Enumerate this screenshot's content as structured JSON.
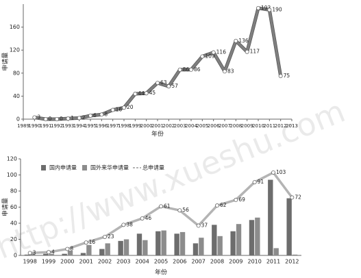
{
  "chart_data": [
    {
      "type": "line",
      "y_label": "申请量",
      "x_label": "年份",
      "x": [
        1990,
        1991,
        1992,
        1993,
        1994,
        1995,
        1996,
        1997,
        1998,
        1999,
        2000,
        2001,
        2002,
        2003,
        2004,
        2005,
        2006,
        2007,
        2008,
        2009,
        2010,
        2011,
        2012
      ],
      "values": [
        3,
        0,
        0,
        1,
        2,
        6,
        8,
        16,
        20,
        44,
        45,
        63,
        57,
        86,
        86,
        109,
        116,
        83,
        136,
        117,
        193,
        190,
        75
      ],
      "color": "#7f7f7f",
      "xlim": [
        1989,
        2013
      ],
      "xticks": [
        1989,
        1990,
        1991,
        1992,
        1993,
        1994,
        1995,
        1996,
        1997,
        1998,
        1999,
        2000,
        2001,
        2002,
        2003,
        2004,
        2005,
        2006,
        2007,
        2008,
        2009,
        2010,
        2011,
        2012,
        2013
      ],
      "ylim": [
        0,
        200
      ],
      "yticks": [
        0,
        40,
        80,
        120,
        160
      ]
    },
    {
      "type": "bar",
      "y_label": "申请量",
      "x_label": "年份",
      "legend": "top-left",
      "categories": [
        "1998",
        "1999",
        "2000",
        "2001",
        "2002",
        "2003",
        "2004",
        "2005",
        "2006",
        "2007",
        "2008",
        "2009",
        "2010",
        "2011",
        "2012"
      ],
      "series": [
        {
          "name": "国内申请量",
          "color": "#6d6d6d",
          "values": [
            1,
            2,
            2,
            3,
            8,
            18,
            27,
            30,
            27,
            15,
            38,
            30,
            44,
            94,
            71
          ]
        },
        {
          "name": "国外来华申请量",
          "color": "#8c8c8c",
          "values": [
            2,
            2,
            6,
            13,
            15,
            20,
            19,
            31,
            29,
            22,
            24,
            39,
            47,
            9,
            1
          ]
        },
        {
          "name": "总申请量",
          "type": "line",
          "color": "#b4b4b4",
          "values": [
            3,
            4,
            8,
            16,
            23,
            38,
            46,
            61,
            56,
            37,
            62,
            69,
            91,
            103,
            72
          ]
        }
      ],
      "ylim": [
        0,
        120
      ],
      "yticks": [
        0,
        20,
        40,
        60,
        80,
        100,
        120
      ]
    }
  ],
  "watermark": "http://www.xueshu.com"
}
